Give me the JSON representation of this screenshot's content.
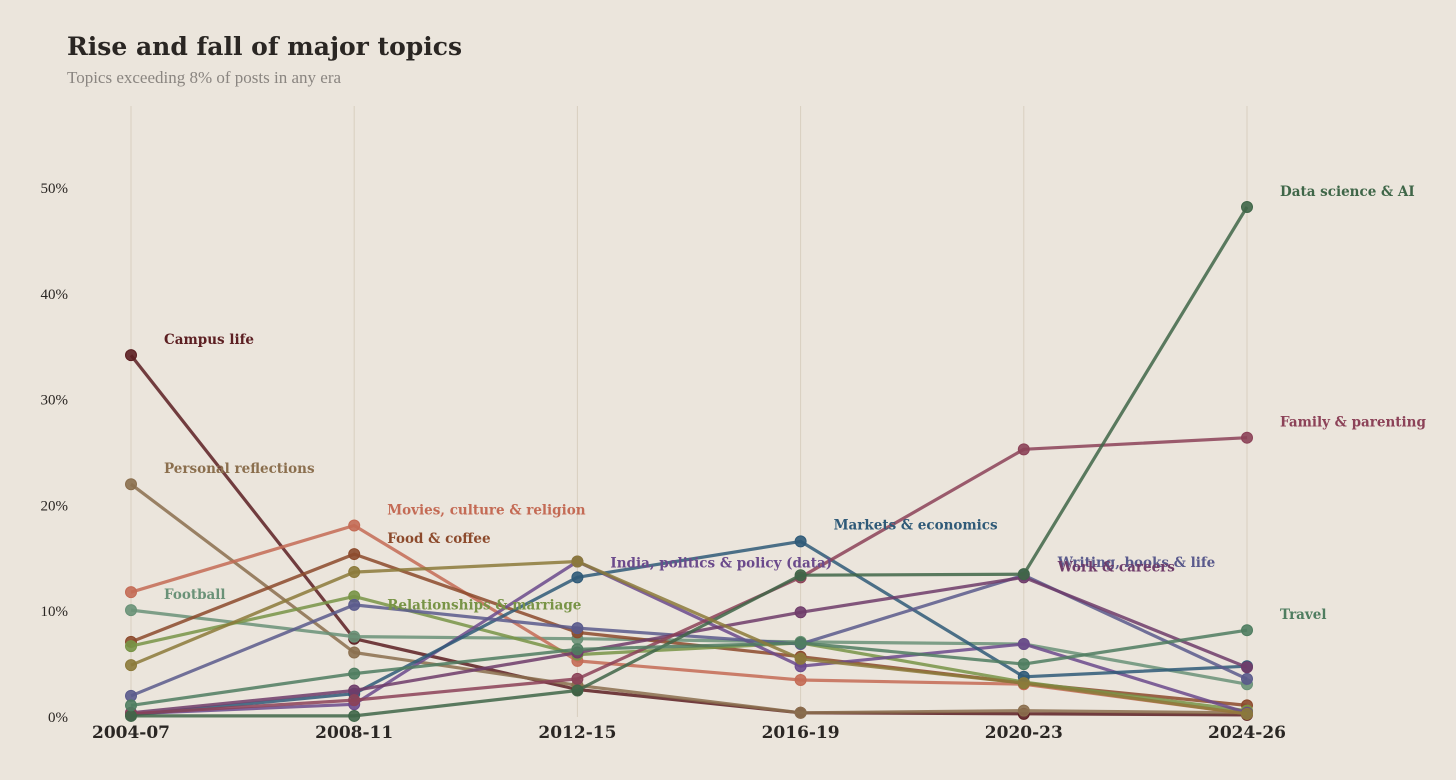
{
  "chart_data": {
    "type": "line",
    "title": "Rise and fall of major topics",
    "subtitle": "Topics exceeding 8% of posts in any era",
    "xlabel": "",
    "ylabel": "",
    "x": [
      "2004-07",
      "2008-11",
      "2012-15",
      "2016-19",
      "2020-23",
      "2024-26"
    ],
    "y_ticks": [
      "0%",
      "10%",
      "20%",
      "30%",
      "40%",
      "50%"
    ],
    "ylim": [
      0,
      58
    ],
    "grid": "vertical",
    "legend": "direct labels",
    "series": [
      {
        "name": "Campus life",
        "color": "#5c1f22",
        "values": [
          34.2,
          7.4,
          2.6,
          0.4,
          0.3,
          0.2
        ],
        "label_at": 0
      },
      {
        "name": "Personal reflections",
        "color": "#8b6f4e",
        "values": [
          22.0,
          6.1,
          3.0,
          0.4,
          0.6,
          0.4
        ],
        "label_at": 0
      },
      {
        "name": "Football",
        "color": "#6a9278",
        "values": [
          10.1,
          7.6,
          7.4,
          7.1,
          6.9,
          3.1
        ],
        "label_at": 0
      },
      {
        "name": "Movies, culture & religion",
        "color": "#c46b55",
        "values": [
          11.8,
          18.1,
          5.3,
          3.5,
          3.1,
          0.3
        ],
        "label_at": 1
      },
      {
        "name": "Food & coffee",
        "color": "#8c4a2c",
        "values": [
          7.1,
          15.4,
          8.0,
          5.7,
          3.2,
          1.1
        ],
        "label_at": 1
      },
      {
        "name": "Relationships & marriage",
        "color": "#789446",
        "values": [
          6.7,
          11.4,
          5.9,
          7.0,
          3.3,
          0.6
        ],
        "label_at": 1
      },
      {
        "name": "India, politics & policy (data)",
        "color": "#6b4a8c",
        "values": [
          0.3,
          1.2,
          14.7,
          4.8,
          6.9,
          0.4
        ],
        "label_at": 2
      },
      {
        "name": "Markets & economics",
        "color": "#2f5a78",
        "values": [
          0.2,
          2.2,
          13.2,
          16.6,
          3.8,
          4.8
        ],
        "label_at": 3
      },
      {
        "name": "Writing, books & life",
        "color": "#5a5a8c",
        "values": [
          2.0,
          10.6,
          8.4,
          6.9,
          13.4,
          3.6
        ],
        "label_at": 4
      },
      {
        "name": "Work & careers",
        "color": "#6f3c6a",
        "values": [
          0.4,
          2.5,
          6.1,
          9.9,
          13.2,
          4.7
        ],
        "label_at": 4
      },
      {
        "name": "Family & parenting",
        "color": "#8c4258",
        "values": [
          0.3,
          1.6,
          3.6,
          13.2,
          25.3,
          26.4
        ],
        "label_at": 5
      },
      {
        "name": "Data science & AI",
        "color": "#3f6648",
        "values": [
          0.1,
          0.1,
          2.5,
          13.4,
          13.5,
          48.2
        ],
        "label_at": 5
      },
      {
        "name": "Travel",
        "color": "#4f7d60",
        "values": [
          1.1,
          4.1,
          6.4,
          7.0,
          5.0,
          8.2
        ],
        "label_at": 5
      },
      {
        "name": "",
        "color": "#8c7a3a",
        "values": [
          4.9,
          13.7,
          14.7,
          5.5,
          3.2,
          0.3
        ],
        "label_at": -1
      }
    ]
  }
}
